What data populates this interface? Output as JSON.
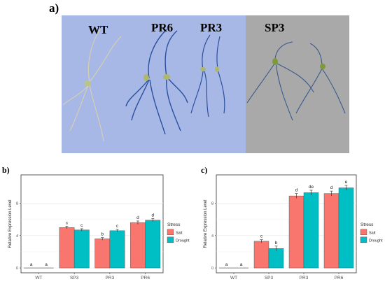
{
  "figure": {
    "panel_a_label": "a)",
    "panel_b_label": "b)",
    "panel_c_label": "c)"
  },
  "photo": {
    "labels": [
      "WT",
      "PR6",
      "PR3",
      "SP3"
    ],
    "colors": {
      "left_background": "#a8b8e6",
      "right_background": "#a9a9a9",
      "stain": "#2b4f9e"
    }
  },
  "chart_data": [
    {
      "type": "bar",
      "title": "",
      "xlabel": "",
      "ylabel": "Relative Expression Level",
      "categories": [
        "WT",
        "SP3",
        "PR3",
        "PR6"
      ],
      "yticks": [
        0,
        4,
        8
      ],
      "ylim": [
        -0.6,
        11.5
      ],
      "legend": {
        "title": "Stress",
        "placement": "right"
      },
      "series": [
        {
          "name": "Salt",
          "color": "#f8766d",
          "values": [
            0,
            5.0,
            3.6,
            5.6
          ],
          "errors": [
            0,
            0.15,
            0.15,
            0.2
          ],
          "letters": [
            "a",
            "c",
            "b",
            "d"
          ]
        },
        {
          "name": "Drought",
          "color": "#00bfc4",
          "values": [
            0,
            4.7,
            4.6,
            5.9
          ],
          "errors": [
            0,
            0.15,
            0.15,
            0.2
          ],
          "letters": [
            "a",
            "c",
            "c",
            "d"
          ]
        }
      ]
    },
    {
      "type": "bar",
      "title": "",
      "xlabel": "",
      "ylabel": "Relative Expression Level",
      "categories": [
        "WT",
        "SP3",
        "PR3",
        "PR6"
      ],
      "yticks": [
        0,
        4,
        8
      ],
      "ylim": [
        -0.6,
        11.5
      ],
      "legend": {
        "title": "Stress",
        "placement": "right"
      },
      "series": [
        {
          "name": "Salt",
          "color": "#f8766d",
          "values": [
            0,
            3.3,
            8.9,
            9.2
          ],
          "errors": [
            0,
            0.2,
            0.3,
            0.3
          ],
          "letters": [
            "a",
            "c",
            "d",
            "d"
          ]
        },
        {
          "name": "Drought",
          "color": "#00bfc4",
          "values": [
            0,
            2.4,
            9.3,
            9.9
          ],
          "errors": [
            0,
            0.3,
            0.3,
            0.3
          ],
          "letters": [
            "a",
            "b",
            "de",
            "e"
          ]
        }
      ]
    }
  ]
}
